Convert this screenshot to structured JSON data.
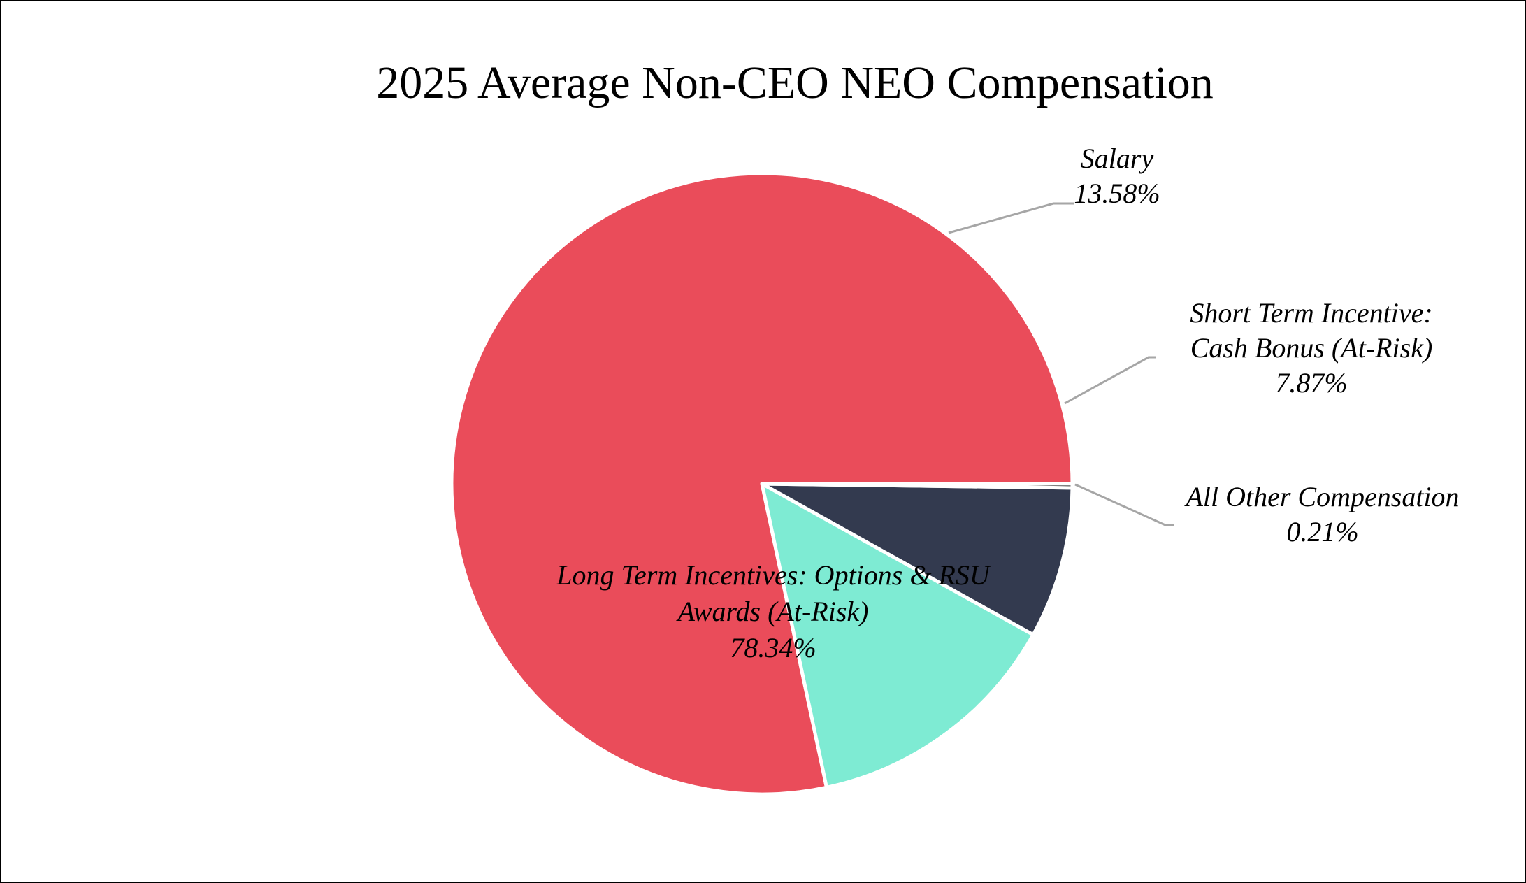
{
  "chart_data": {
    "type": "pie",
    "title": "2025 Average Non-CEO NEO Compensation",
    "start_angle_deg": 0,
    "direction": "counterclockwise",
    "slices": [
      {
        "name": "Long Term Incentives: Options & RSU Awards (At-Risk)",
        "label_lines": [
          "Long Term Incentives: Options & RSU",
          "Awards (At-Risk)"
        ],
        "value": 78.34,
        "value_label": "78.34%",
        "color": "#ea4c5a",
        "label_position": "inside"
      },
      {
        "name": "Salary",
        "label_lines": [
          "Salary"
        ],
        "value": 13.58,
        "value_label": "13.58%",
        "color": "#7eebd3",
        "label_position": "outside"
      },
      {
        "name": "Short Term Incentive: Cash Bonus (At-Risk)",
        "label_lines": [
          "Short Term Incentive:",
          "Cash Bonus (At-Risk)"
        ],
        "value": 7.87,
        "value_label": "7.87%",
        "color": "#333a4f",
        "label_position": "outside"
      },
      {
        "name": "All Other Compensation",
        "label_lines": [
          "All Other Compensation"
        ],
        "value": 0.21,
        "value_label": "0.21%",
        "color": "#000000",
        "label_position": "outside"
      }
    ]
  }
}
